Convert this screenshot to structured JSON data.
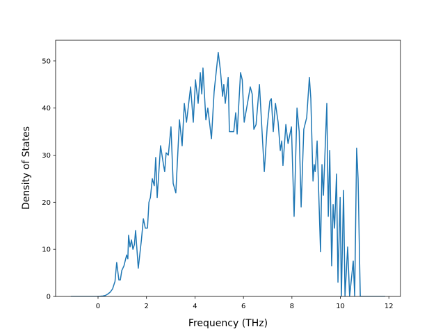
{
  "chart_data": {
    "type": "line",
    "x_label": "Frequency (THz)",
    "y_label": "Density of States",
    "xlim": [
      -1.75,
      12.48
    ],
    "ylim": [
      0,
      54.4
    ],
    "xticks": [
      0,
      2,
      4,
      6,
      8,
      10,
      12
    ],
    "yticks": [
      0,
      10,
      20,
      30,
      40,
      50
    ],
    "x": [
      -1.12,
      -0.5,
      0,
      0.2,
      0.3,
      0.4,
      0.5,
      0.6,
      0.7,
      0.77,
      0.86,
      0.92,
      0.98,
      1.07,
      1.18,
      1.23,
      1.26,
      1.32,
      1.38,
      1.44,
      1.5,
      1.55,
      1.66,
      1.79,
      1.87,
      1.95,
      2.04,
      2.1,
      2.16,
      2.24,
      2.32,
      2.38,
      2.44,
      2.58,
      2.7,
      2.75,
      2.81,
      2.9,
      3.01,
      3.1,
      3.21,
      3.36,
      3.47,
      3.56,
      3.65,
      3.82,
      3.93,
      4.02,
      4.13,
      4.22,
      4.28,
      4.33,
      4.45,
      4.53,
      4.68,
      4.79,
      4.96,
      5.05,
      5.14,
      5.19,
      5.25,
      5.37,
      5.42,
      5.6,
      5.68,
      5.74,
      5.88,
      5.95,
      6.03,
      6.2,
      6.28,
      6.36,
      6.43,
      6.52,
      6.66,
      6.86,
      6.98,
      7.09,
      7.15,
      7.23,
      7.32,
      7.43,
      7.52,
      7.58,
      7.63,
      7.75,
      7.84,
      7.98,
      8.09,
      8.21,
      8.3,
      8.38,
      8.49,
      8.61,
      8.72,
      8.78,
      8.87,
      8.92,
      8.96,
      9.04,
      9.18,
      9.24,
      9.3,
      9.44,
      9.5,
      9.56,
      9.64,
      9.7,
      9.76,
      9.84,
      9.9,
      9.99,
      10.04,
      10.13,
      10.19,
      10.3,
      10.38,
      10.53,
      10.59,
      10.67,
      10.73,
      10.82,
      11.0,
      11.85
    ],
    "series": [
      {
        "name": "DOS",
        "color": "#1f77b4",
        "values": [
          0,
          0,
          0,
          0.1,
          0.2,
          0.5,
          0.9,
          1.6,
          3.2,
          7.2,
          3.5,
          3.5,
          5.5,
          6.5,
          8.8,
          8,
          13,
          10.5,
          12,
          10,
          11,
          14,
          6,
          12,
          16.5,
          14.5,
          14.5,
          20,
          21,
          25,
          23.5,
          29.5,
          21,
          32,
          28,
          26.5,
          30.5,
          30,
          36,
          24,
          22,
          37.5,
          32,
          41,
          37,
          44.5,
          37,
          46,
          41,
          47.5,
          43,
          48.5,
          37.5,
          40,
          33.5,
          43.5,
          51.8,
          48,
          42.5,
          45,
          41,
          46.5,
          35,
          35,
          39,
          34.5,
          47.5,
          46,
          37,
          42,
          44.5,
          43,
          35.5,
          36.5,
          45,
          26.5,
          36,
          41.5,
          42,
          35,
          41,
          37,
          31,
          33,
          27.8,
          36.5,
          32.5,
          36,
          17,
          40,
          35,
          19,
          35.5,
          38,
          46.5,
          42,
          24.5,
          28,
          26.5,
          33,
          9.5,
          28,
          21.5,
          41,
          17,
          31,
          6.5,
          19.5,
          14.5,
          26,
          3,
          21,
          0,
          22.5,
          0,
          10.5,
          0,
          7.5,
          0,
          31.5,
          25,
          0,
          0,
          0
        ]
      }
    ]
  }
}
